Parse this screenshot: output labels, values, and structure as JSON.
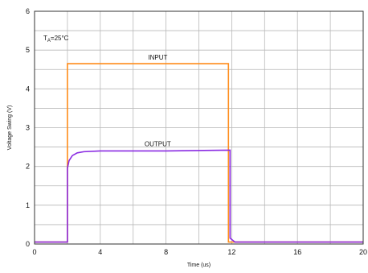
{
  "chart_data": {
    "type": "line",
    "title": "",
    "xlabel": "Time (us)",
    "ylabel": "Voltage Swing (V)",
    "xlim": [
      0,
      20
    ],
    "ylim": [
      0,
      6
    ],
    "x_ticks": [
      0,
      4,
      8,
      12,
      16,
      20
    ],
    "y_ticks": [
      0,
      1,
      2,
      3,
      4,
      5,
      6
    ],
    "grid": true,
    "condition": "T",
    "condition_sub": "A",
    "condition_suffix": "=25°C",
    "series": [
      {
        "name": "INPUT",
        "color": "#ff8c1a",
        "x": [
          0,
          2.0,
          2.0,
          6,
          11.8,
          11.8,
          20
        ],
        "y": [
          0.05,
          0.05,
          4.65,
          4.65,
          4.65,
          0.05,
          0.05
        ]
      },
      {
        "name": "OUTPUT",
        "color": "#8a2be2",
        "x": [
          0,
          2.0,
          2.0,
          2.1,
          2.3,
          2.6,
          3.0,
          4,
          8,
          11.9,
          11.9,
          12.2,
          20
        ],
        "y": [
          0.05,
          0.05,
          1.95,
          2.15,
          2.28,
          2.35,
          2.38,
          2.4,
          2.4,
          2.42,
          0.15,
          0.05,
          0.05
        ]
      }
    ]
  }
}
